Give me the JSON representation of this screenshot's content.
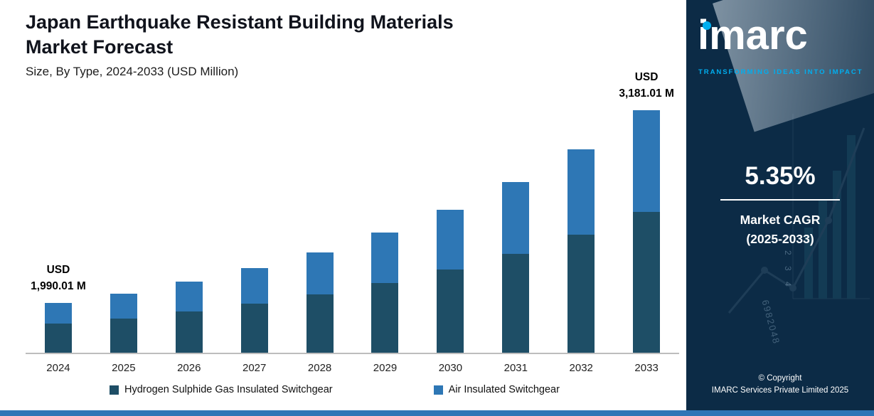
{
  "header": {
    "title_line1": "Japan Earthquake Resistant Building Materials",
    "title_line2": "Market Forecast",
    "subtitle": "Size, By Type, 2024-2033 (USD Million)"
  },
  "chart_data": {
    "type": "bar",
    "stacked": true,
    "title": "Japan Earthquake Resistant Building Materials Market Forecast",
    "xlabel": "",
    "ylabel": "USD Million",
    "grid": false,
    "legend_position": "bottom",
    "categories": [
      "2024",
      "2025",
      "2026",
      "2027",
      "2028",
      "2029",
      "2030",
      "2031",
      "2032",
      "2033"
    ],
    "series": [
      {
        "name": "Hydrogen Sulphide Gas Insulated Switchgear",
        "color": "#1e4e66",
        "values": [
          1154.21,
          1215.96,
          1281.01,
          1349.54,
          1421.74,
          1497.81,
          1577.94,
          1662.36,
          1751.3,
          1844.99
        ]
      },
      {
        "name": "Air Insulated Switchgear",
        "color": "#2e77b5",
        "values": [
          835.8,
          880.52,
          927.63,
          977.26,
          1029.54,
          1084.62,
          1142.65,
          1203.78,
          1268.18,
          1336.02
        ]
      }
    ],
    "totals": [
      1990.01,
      2096.48,
      2208.64,
      2326.8,
      2451.28,
      2582.43,
      2720.59,
      2866.14,
      3019.48,
      3181.01
    ],
    "annotations": {
      "first": {
        "category": "2024",
        "line1": "USD",
        "line2": "1,990.01 M"
      },
      "last": {
        "category": "2033",
        "line1": "USD",
        "line2": "3,181.01 M"
      }
    }
  },
  "side_panel": {
    "logo_text": "imarc",
    "tagline": "TRANSFORMING IDEAS INTO IMPACT",
    "cagr_value": "5.35%",
    "cagr_label_line1": "Market CAGR",
    "cagr_label_line2": "(2025-2033)",
    "copyright_line1": "© Copyright",
    "copyright_line2": "IMARC Services Private Limited 2025",
    "decorative_numbers": [
      "1 2 3 4",
      "6982048"
    ]
  },
  "colors": {
    "panel_background": "#0c2b46",
    "accent_cyan": "#00aeef",
    "bottom_strip": "#2e75b6",
    "series_dark": "#1e4e66",
    "series_light": "#2e77b5",
    "axis_line": "#bdbdbd"
  }
}
